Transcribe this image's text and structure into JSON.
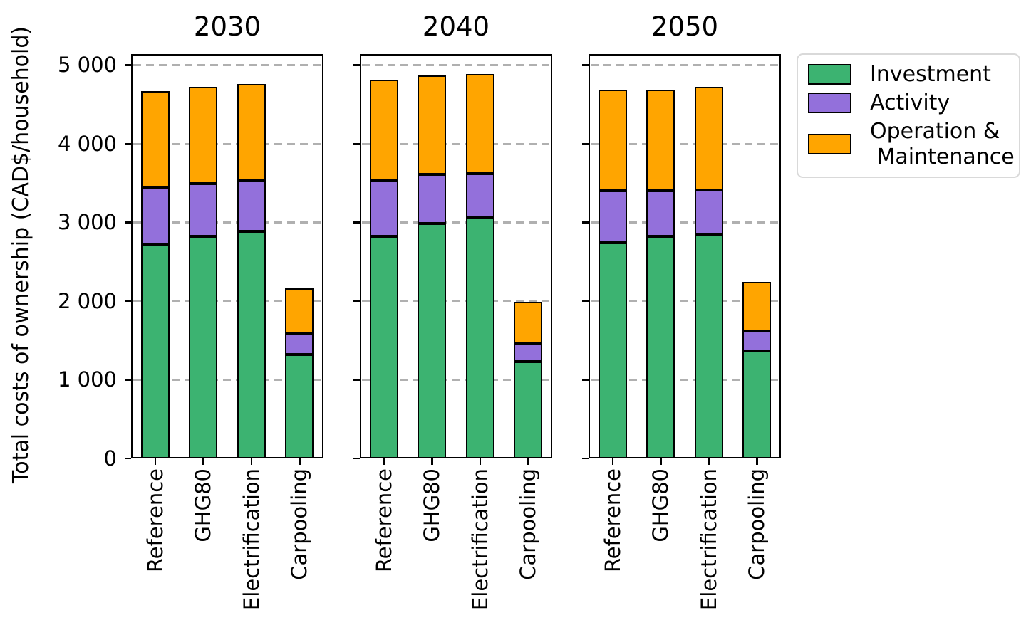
{
  "chart_data": {
    "type": "bar",
    "stacked": true,
    "ylabel": "Total costs of ownership (CAD$/household)",
    "ylim": [
      0,
      5140
    ],
    "ytick_values": [
      0,
      1000,
      2000,
      3000,
      4000,
      5000
    ],
    "ytick_labels": [
      "0",
      "1 000",
      "2 000",
      "3 000",
      "4 000",
      "5 000"
    ],
    "grid": "horizontal-dashed",
    "grid_color": "#b0b0b0",
    "legend_position": "upper-right-outside",
    "categories": [
      "Reference",
      "GHG80",
      "Electrification",
      "Carpooling"
    ],
    "series": [
      {
        "name": "Investment",
        "legend_label": "Investment",
        "color": "#3cb371"
      },
      {
        "name": "Activity",
        "legend_label": "Activity",
        "color": "#9370db"
      },
      {
        "name": "Operation & Maintenance",
        "legend_label": "Operation &\n Maintenance",
        "color": "#ffa500"
      }
    ],
    "panels": [
      {
        "title": "2030",
        "values": {
          "Investment": [
            2720,
            2820,
            2890,
            1320
          ],
          "Activity": [
            730,
            670,
            650,
            260
          ],
          "Operation & Maintenance": [
            1220,
            1230,
            1220,
            580
          ]
        }
      },
      {
        "title": "2040",
        "values": {
          "Investment": [
            2820,
            2990,
            3060,
            1230
          ],
          "Activity": [
            720,
            620,
            560,
            230
          ],
          "Operation & Maintenance": [
            1270,
            1260,
            1270,
            530
          ]
        }
      },
      {
        "title": "2050",
        "values": {
          "Investment": [
            2740,
            2820,
            2850,
            1370
          ],
          "Activity": [
            660,
            580,
            560,
            250
          ],
          "Operation & Maintenance": [
            1290,
            1290,
            1310,
            620
          ]
        }
      }
    ]
  }
}
